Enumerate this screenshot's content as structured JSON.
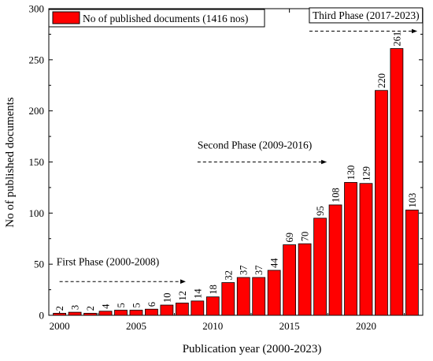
{
  "chart_data": {
    "type": "bar",
    "xlabel": "Publication year (2000-2023)",
    "ylabel": "No of published documents",
    "xlim": [
      1999.3,
      2023.7
    ],
    "ylim": [
      0,
      300
    ],
    "x_ticks": [
      2000,
      2005,
      2010,
      2015,
      2020
    ],
    "y_ticks": [
      0,
      50,
      100,
      150,
      200,
      250,
      300
    ],
    "grid": false,
    "legend": {
      "position": "top-left",
      "label": "No of published documents (1416 nos)"
    },
    "bar_color": "#ff0000",
    "years": [
      2000,
      2001,
      2002,
      2003,
      2004,
      2005,
      2006,
      2007,
      2008,
      2009,
      2010,
      2011,
      2012,
      2013,
      2014,
      2015,
      2016,
      2017,
      2018,
      2019,
      2020,
      2021,
      2022,
      2023
    ],
    "values": [
      2,
      3,
      2,
      4,
      5,
      5,
      6,
      10,
      12,
      14,
      18,
      32,
      37,
      37,
      44,
      69,
      70,
      95,
      108,
      130,
      129,
      220,
      261,
      103
    ],
    "annotations": [
      {
        "text": "First Phase (2000-2008)",
        "box": false,
        "x": 1999.8,
        "y": 49,
        "arrow": [
          2000.0,
          2008.2,
          33
        ]
      },
      {
        "text": "Second Phase (2009-2016)",
        "box": false,
        "x": 2009.0,
        "y": 163,
        "arrow": [
          2009.0,
          2017.4,
          150
        ]
      },
      {
        "text": "Third Phase (2017-2023)",
        "box": true,
        "x": 2016.3,
        "y": 290,
        "arrow": [
          2016.3,
          2023.3,
          278
        ]
      }
    ]
  }
}
